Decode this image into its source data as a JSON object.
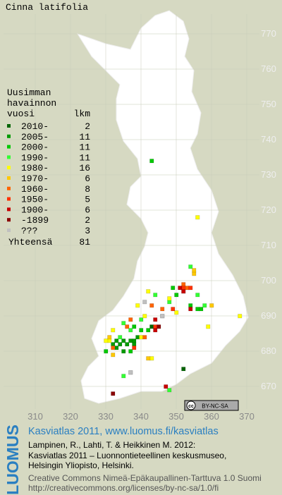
{
  "title": "Cinna latifolia",
  "legend": {
    "heading": [
      "Uusimman",
      "havainnon",
      "vuosi"
    ],
    "count_heading": "lkm",
    "entries": [
      {
        "label": "2010-",
        "count": 2,
        "color": "#006400",
        "squares": [
          [
            352,
            675
          ],
          [
            343,
            687
          ]
        ]
      },
      {
        "label": "2005-",
        "count": 11,
        "color": "#009a00",
        "squares": [
          [
            332,
            682
          ],
          [
            333,
            681
          ],
          [
            334,
            682
          ],
          [
            335,
            683
          ],
          [
            336,
            682
          ],
          [
            337,
            683
          ],
          [
            338,
            683
          ],
          [
            338,
            682
          ],
          [
            335,
            680
          ],
          [
            333,
            683
          ],
          [
            339,
            684
          ]
        ]
      },
      {
        "label": "2000-",
        "count": 11,
        "color": "#00c800",
        "squares": [
          [
            343,
            734
          ],
          [
            349,
            698
          ],
          [
            356,
            692
          ],
          [
            357,
            692
          ],
          [
            354,
            693
          ],
          [
            350,
            696
          ],
          [
            338,
            687
          ],
          [
            340,
            686
          ],
          [
            330,
            680
          ],
          [
            337,
            680
          ],
          [
            342,
            686
          ]
        ]
      },
      {
        "label": "1990-",
        "count": 11,
        "color": "#33ff33",
        "squares": [
          [
            354,
            704
          ],
          [
            356,
            696
          ],
          [
            358,
            693
          ],
          [
            348,
            694
          ],
          [
            344,
            696
          ],
          [
            335,
            688
          ],
          [
            337,
            686
          ],
          [
            334,
            684
          ],
          [
            335,
            673
          ],
          [
            348,
            669
          ],
          [
            340,
            689
          ]
        ]
      },
      {
        "label": "1980-",
        "count": 16,
        "color": "#ffff00",
        "squares": [
          [
            356,
            718
          ],
          [
            342,
            697
          ],
          [
            348,
            695
          ],
          [
            350,
            691
          ],
          [
            339,
            693
          ],
          [
            346,
            690
          ],
          [
            368,
            690
          ],
          [
            359,
            687
          ],
          [
            331,
            683
          ],
          [
            330,
            683
          ],
          [
            332,
            686
          ],
          [
            343,
            678
          ],
          [
            337,
            674
          ],
          [
            340,
            684
          ],
          [
            341,
            690
          ],
          [
            352,
            697
          ]
        ]
      },
      {
        "label": "1970-",
        "count": 6,
        "color": "#ffc800",
        "squares": [
          [
            355,
            702
          ],
          [
            355,
            703
          ],
          [
            332,
            679
          ],
          [
            331,
            684
          ],
          [
            342,
            678
          ],
          [
            360,
            693
          ]
        ]
      },
      {
        "label": "1960-",
        "count": 8,
        "color": "#ff6400",
        "squares": [
          [
            341,
            684
          ],
          [
            337,
            689
          ],
          [
            343,
            693
          ],
          [
            352,
            699
          ],
          [
            353,
            698
          ],
          [
            332,
            681
          ],
          [
            336,
            687
          ],
          [
            346,
            692
          ]
        ]
      },
      {
        "label": "1950-",
        "count": 5,
        "color": "#ff3200",
        "squares": [
          [
            352,
            698
          ],
          [
            354,
            698
          ],
          [
            344,
            687
          ],
          [
            338,
            681
          ],
          [
            349,
            692
          ]
        ]
      },
      {
        "label": "1900-",
        "count": 6,
        "color": "#c80000",
        "squares": [
          [
            351,
            698
          ],
          [
            352,
            697
          ],
          [
            344,
            689
          ],
          [
            344,
            686
          ],
          [
            347,
            670
          ],
          [
            354,
            692
          ]
        ]
      },
      {
        "label": "-1899",
        "count": 2,
        "color": "#8b0000",
        "squares": [
          [
            332,
            668
          ],
          [
            345,
            687
          ]
        ]
      },
      {
        "label": "???",
        "count": 3,
        "color": "#c0c0c0",
        "squares": [
          [
            341,
            694
          ],
          [
            346,
            690
          ],
          [
            337,
            674
          ]
        ]
      }
    ],
    "total_label": "Yhteensä",
    "total": 81
  },
  "grid": {
    "xticks": [
      310,
      320,
      330,
      340,
      350,
      360,
      370
    ],
    "yticks": [
      670,
      680,
      690,
      700,
      710,
      720,
      730,
      740,
      750,
      760,
      770
    ]
  },
  "license_badge": [
    "cc",
    "BY-NC-SA"
  ],
  "footer": {
    "logo": "LUOMUS",
    "link": "Kasviatlas 2011, www.luomus.fi/kasviatlas",
    "citation": [
      "Lampinen, R., Lahti, T. & Heikkinen M. 2012:",
      "Kasviatlas 2011 – Luonnontieteellinen keskusmuseo,",
      "Helsingin Yliopisto, Helsinki."
    ],
    "license": [
      "Creative Commons Nimeä-Epäkaupallinen-Tarttuva 1.0 Suomi",
      "http://creativecommons.org/licenses/by-nc-sa/1.0/fi"
    ]
  }
}
